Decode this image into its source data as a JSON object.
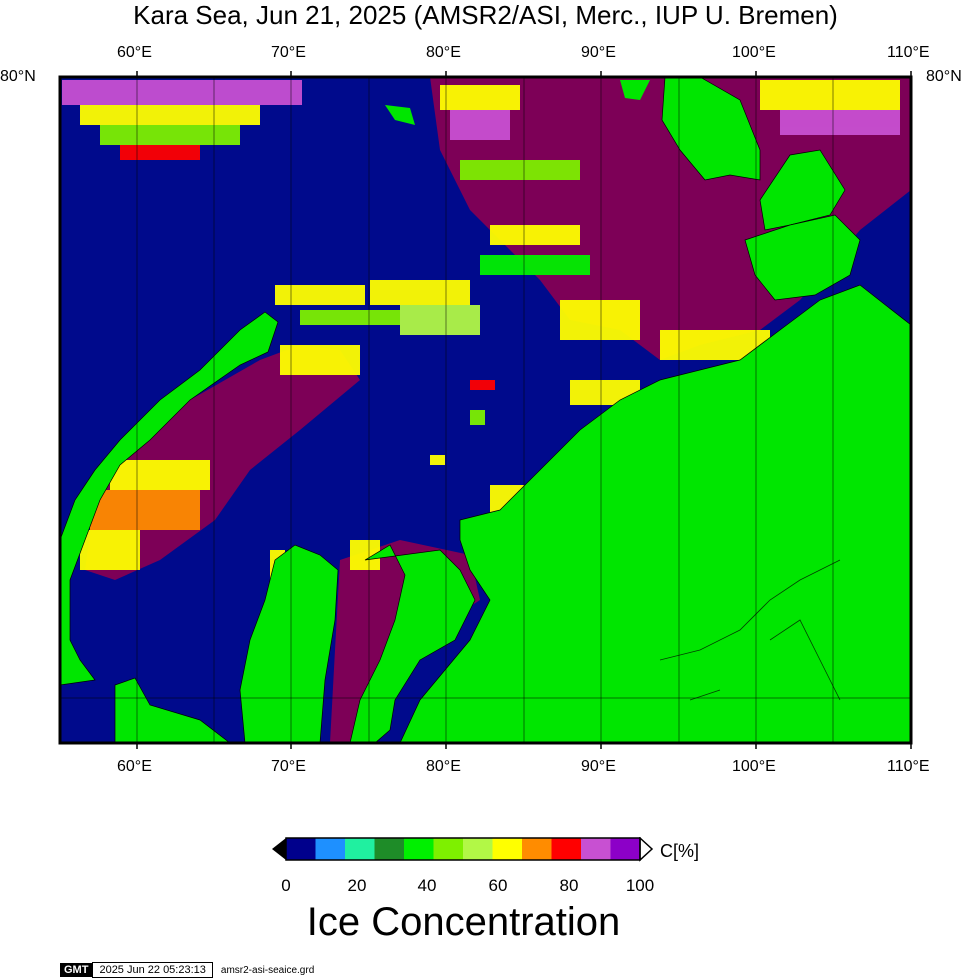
{
  "title": "Kara Sea, Jun 21, 2025 (AMSR2/ASI, Merc., IUP U. Bremen)",
  "map": {
    "lat_label_left": "80°N",
    "lat_label_right": "80°N",
    "lon_labels_top": [
      "60°E",
      "70°E",
      "80°E",
      "90°E",
      "100°E",
      "110°E"
    ],
    "lon_labels_bottom": [
      "60°E",
      "70°E",
      "80°E",
      "90°E",
      "100°E",
      "110°E"
    ],
    "colors": {
      "open_water": "#000a8c",
      "land": "#00e600",
      "high_ice": "#7d0057"
    }
  },
  "colorbar": {
    "unit_label": "C[%]",
    "tick_labels": [
      "0",
      "20",
      "40",
      "60",
      "80",
      "100"
    ],
    "colors": [
      "#00008c",
      "#1e90ff",
      "#20f0a0",
      "#1e8c28",
      "#00f000",
      "#7ef000",
      "#b2f846",
      "#ffff00",
      "#ff8c00",
      "#ff0000",
      "#c850d2",
      "#8c00c8"
    ],
    "title": "Ice Concentration"
  },
  "footer": {
    "logo": "GMT",
    "timestamp": "2025 Jun 22 05:23:13",
    "filename": "amsr2-asi-seaice.grd"
  }
}
